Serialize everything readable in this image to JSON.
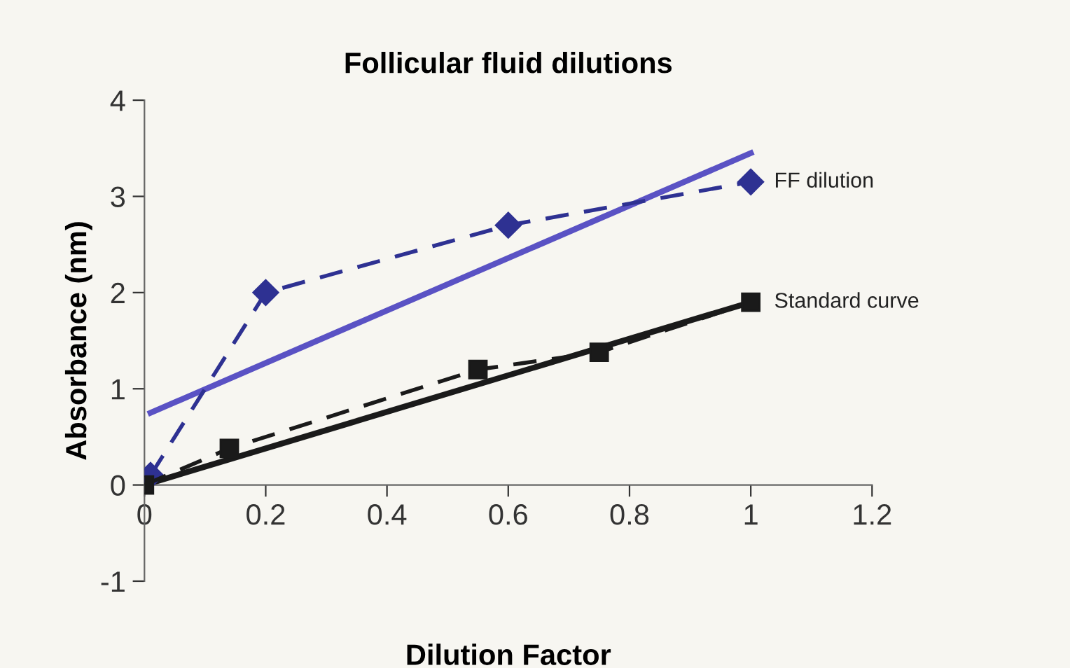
{
  "chart_data": {
    "type": "line",
    "title": "Follicular fluid dilutions",
    "xlabel": "Dilution Factor",
    "ylabel": "Absorbance (nm)",
    "xlim": [
      0,
      1.2
    ],
    "xticks": [
      0,
      0.2,
      0.4,
      0.6,
      0.8,
      1,
      1.2
    ],
    "ylim": [
      -1,
      4
    ],
    "yticks": [
      -1,
      0,
      1,
      2,
      3,
      4
    ],
    "grid": false,
    "series": [
      {
        "name": "FF dilution",
        "color": "#2e3192",
        "x": [
          0.01,
          0.2,
          0.6,
          1.0
        ],
        "values": [
          0.1,
          2.0,
          2.7,
          3.15
        ],
        "marker": "diamond",
        "line_style": "dashed"
      },
      {
        "name": "Standard curve",
        "color": "#1a1a1a",
        "x": [
          0,
          0.14,
          0.55,
          0.75,
          1.0
        ],
        "values": [
          0,
          0.38,
          1.2,
          1.38,
          1.9
        ],
        "marker": "square",
        "line_style": "dashed"
      },
      {
        "color": "#5a52c4",
        "x": [
          0.01,
          1.0
        ],
        "values": [
          0.75,
          3.45
        ],
        "marker": "none",
        "line_style": "solid"
      },
      {
        "color": "#1a1a1a",
        "x": [
          0,
          1.0
        ],
        "values": [
          0,
          1.9
        ],
        "marker": "none",
        "line_style": "solid"
      }
    ]
  }
}
